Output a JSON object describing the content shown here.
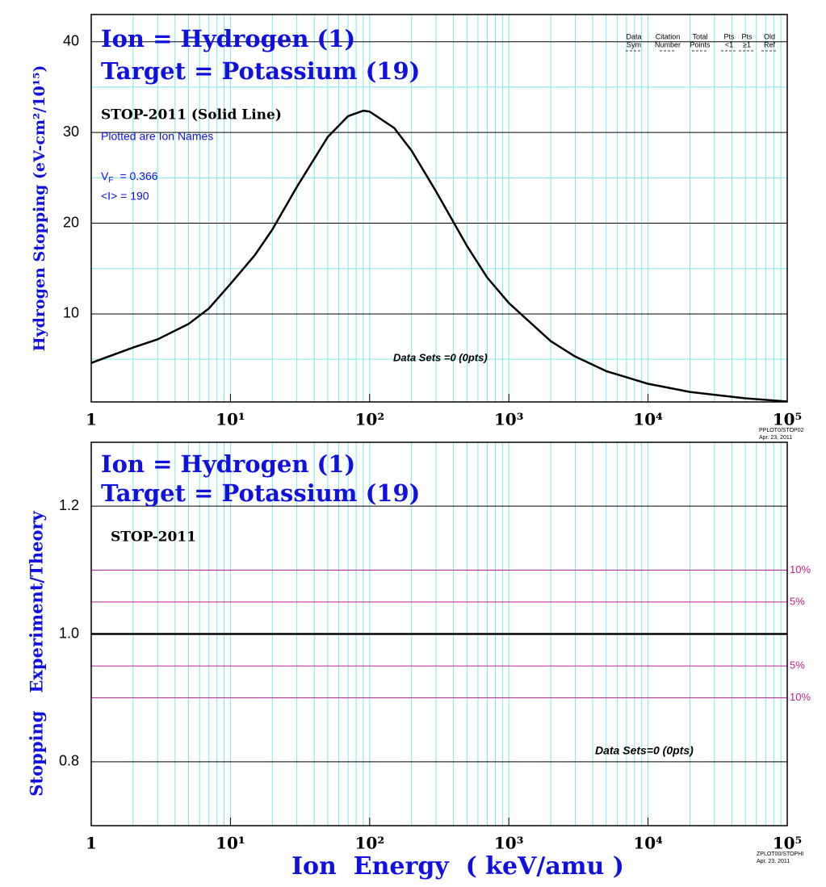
{
  "chart_data": [
    {
      "type": "line",
      "title": [
        "Ion = Hydrogen (1)",
        "Target = Potassium (19)"
      ],
      "model_label": "STOP-2011 (Solid Line)",
      "subtitle": "Plotted are Ion Names",
      "vf": {
        "symbol": "V",
        "sub": "F",
        "text": "= 0.366"
      },
      "mean_i": "<I> = 190",
      "data_sets": "Data Sets =0 (0pts)",
      "legend_header": [
        [
          "Data",
          "Sym"
        ],
        [
          "Citation",
          "Number"
        ],
        [
          "Total",
          "Points"
        ],
        [
          "Pts",
          "<1"
        ],
        [
          "Pts",
          "≥1"
        ],
        [
          "Old",
          "Ref"
        ]
      ],
      "ylabel": "Hydrogen Stopping (eV-cm²/10¹⁵)",
      "footer": [
        "PPLOT0/STOP02",
        "Apr. 23, 2011"
      ],
      "xlog": true,
      "xlim": [
        1,
        100000
      ],
      "xticks": [
        1,
        {
          "value": 10,
          "label": "10¹"
        },
        {
          "value": 100,
          "label": "10²"
        },
        {
          "value": 1000,
          "label": "10³"
        },
        {
          "value": 10000,
          "label": "10⁴"
        },
        {
          "value": 100000,
          "label": "10⁵"
        }
      ],
      "xminor": [
        2,
        3,
        4,
        5,
        6,
        7,
        8,
        9,
        20,
        30,
        40,
        50,
        60,
        70,
        80,
        90,
        200,
        300,
        400,
        500,
        600,
        700,
        800,
        900,
        2000,
        3000,
        4000,
        5000,
        6000,
        7000,
        8000,
        9000,
        20000,
        30000,
        40000,
        50000,
        60000,
        70000,
        80000,
        90000
      ],
      "ylim": [
        0.3,
        43
      ],
      "yticks": [
        10,
        20,
        30,
        40
      ],
      "yminor": [
        5,
        15,
        25,
        35
      ],
      "grid_color": "#7fe8e8",
      "series": [
        {
          "name": "STOP-2011",
          "color": "#000000",
          "x": [
            1,
            2,
            3,
            5,
            7,
            10,
            15,
            20,
            30,
            50,
            70,
            90,
            100,
            150,
            200,
            300,
            500,
            700,
            1000,
            2000,
            3000,
            5000,
            10000,
            20000,
            50000,
            100000
          ],
          "values": [
            4.6,
            6.3,
            7.2,
            8.9,
            10.6,
            13.3,
            16.5,
            19.3,
            24.0,
            29.5,
            31.8,
            32.4,
            32.3,
            30.5,
            28.0,
            23.5,
            17.5,
            14.0,
            11.2,
            7.0,
            5.3,
            3.7,
            2.3,
            1.4,
            0.7,
            0.35
          ]
        }
      ]
    },
    {
      "type": "line",
      "title": [
        "Ion = Hydrogen (1)",
        "Target = Potassium (19)"
      ],
      "model_label": "STOP-2011",
      "data_sets": "Data Sets=0 (0pts)",
      "ylabel": "Stopping   Experiment/Theory",
      "xlabel": "Ion  Energy  ( keV/amu )",
      "footer": [
        "ZPLOT00/STOPHI",
        "Apr. 23, 2011"
      ],
      "xlog": true,
      "xlim": [
        1,
        100000
      ],
      "xticks": [
        1,
        {
          "value": 10,
          "label": "10¹"
        },
        {
          "value": 100,
          "label": "10²"
        },
        {
          "value": 1000,
          "label": "10³"
        },
        {
          "value": 10000,
          "label": "10⁴"
        },
        {
          "value": 100000,
          "label": "10⁵"
        }
      ],
      "xminor": [
        2,
        3,
        4,
        5,
        6,
        7,
        8,
        9,
        20,
        30,
        40,
        50,
        60,
        70,
        80,
        90,
        200,
        300,
        400,
        500,
        600,
        700,
        800,
        900,
        2000,
        3000,
        4000,
        5000,
        6000,
        7000,
        8000,
        9000,
        20000,
        30000,
        40000,
        50000,
        60000,
        70000,
        80000,
        90000
      ],
      "ylim": [
        0.7,
        1.3
      ],
      "yticks": [
        0.8,
        {
          "value": 1,
          "label": "1.0"
        },
        1.2
      ],
      "yminor": [
        0.9,
        1.1
      ],
      "grid_color": "#7fe8e8",
      "baseline": {
        "value": 1,
        "color": "#000000"
      },
      "ref_lines": [
        {
          "value": 1.1,
          "label": "10%"
        },
        {
          "value": 1.05,
          "label": "5%"
        },
        {
          "value": 0.95,
          "label": "5%"
        },
        {
          "value": 0.9,
          "label": "10%"
        }
      ],
      "ref_color": "#c02090",
      "series": []
    }
  ]
}
